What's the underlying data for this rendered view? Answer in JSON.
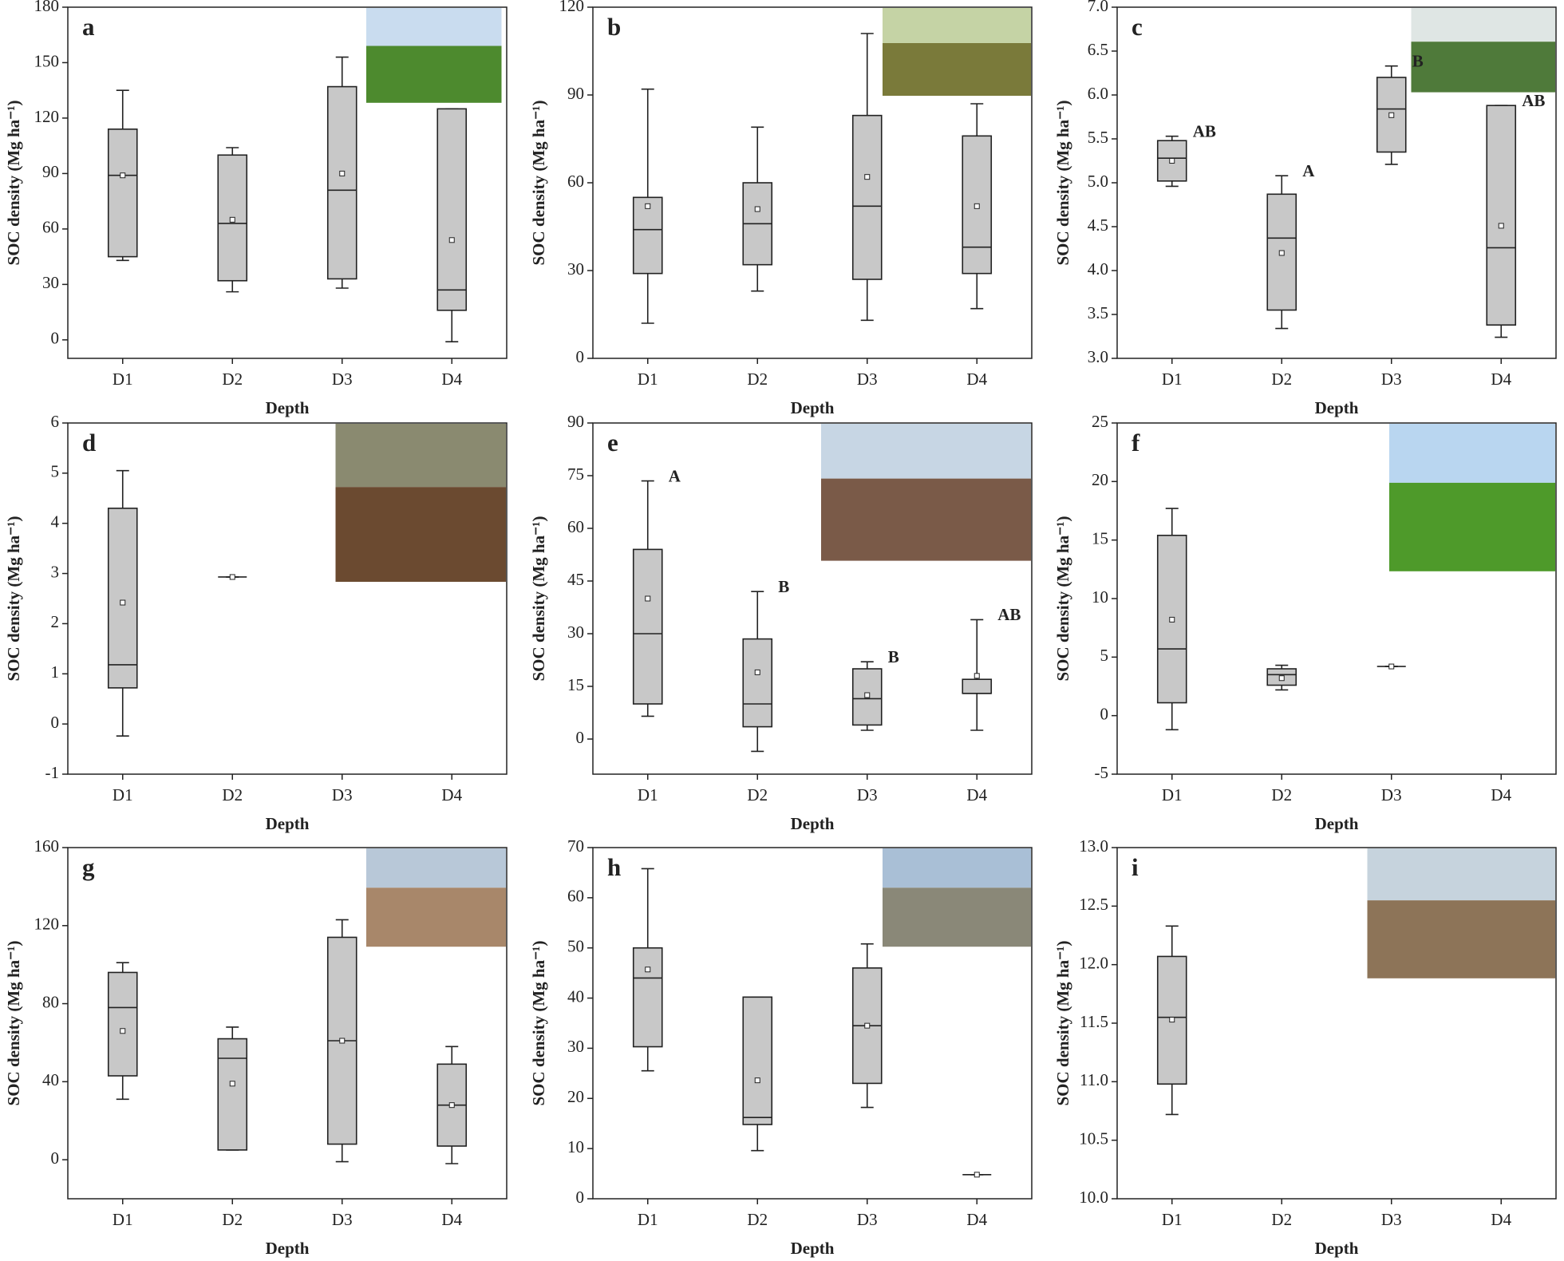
{
  "chart_data": [
    {
      "type": "box",
      "label": "a",
      "xlabel": "Depth",
      "ylabel": "SOC density (Mg ha⁻¹)",
      "categories": [
        "D1",
        "D2",
        "D3",
        "D4"
      ],
      "ylim": [
        -10,
        180
      ],
      "yticks": [
        0,
        30,
        60,
        90,
        120,
        150,
        180
      ],
      "boxes": [
        {
          "min": 43,
          "q1": 45,
          "median": 89,
          "q3": 114,
          "max": 135,
          "mean": 89
        },
        {
          "min": 26,
          "q1": 32,
          "median": 63,
          "q3": 100,
          "max": 104,
          "mean": 65
        },
        {
          "min": 28,
          "q1": 33,
          "median": 81,
          "q3": 137,
          "max": 153,
          "mean": 90
        },
        {
          "min": -1,
          "q1": 16,
          "median": 27,
          "q3": 125,
          "max": 125,
          "mean": 54
        }
      ]
    },
    {
      "type": "box",
      "label": "b",
      "xlabel": "Depth",
      "ylabel": "SOC density (Mg ha⁻¹)",
      "categories": [
        "D1",
        "D2",
        "D3",
        "D4"
      ],
      "ylim": [
        0,
        120
      ],
      "yticks": [
        0,
        30,
        60,
        90,
        120
      ],
      "boxes": [
        {
          "min": 12,
          "q1": 29,
          "median": 44,
          "q3": 55,
          "max": 92,
          "mean": 52
        },
        {
          "min": 23,
          "q1": 32,
          "median": 46,
          "q3": 60,
          "max": 79,
          "mean": 51
        },
        {
          "min": 13,
          "q1": 27,
          "median": 52,
          "q3": 83,
          "max": 111,
          "mean": 62
        },
        {
          "min": 17,
          "q1": 29,
          "median": 38,
          "q3": 76,
          "max": 87,
          "mean": 52
        }
      ]
    },
    {
      "type": "box",
      "label": "c",
      "xlabel": "Depth",
      "ylabel": "SOC density (Mg ha⁻¹)",
      "categories": [
        "D1",
        "D2",
        "D3",
        "D4"
      ],
      "ylim": [
        3,
        7
      ],
      "yticks": [
        {
          "value": 3,
          "label": "3.0"
        },
        3.5,
        {
          "value": 4,
          "label": "4.0"
        },
        4.5,
        {
          "value": 5,
          "label": "5.0"
        },
        5.5,
        {
          "value": 6,
          "label": "6.0"
        },
        6.5,
        {
          "value": 7,
          "label": "7.0"
        }
      ],
      "letters": [
        "AB",
        "A",
        "B",
        "AB"
      ],
      "boxes": [
        {
          "min": 4.96,
          "q1": 5.02,
          "median": 5.28,
          "q3": 5.48,
          "max": 5.53,
          "mean": 5.25
        },
        {
          "min": 3.34,
          "q1": 3.55,
          "median": 4.37,
          "q3": 4.87,
          "max": 5.08,
          "mean": 4.2
        },
        {
          "min": 5.21,
          "q1": 5.35,
          "median": 5.84,
          "q3": 6.2,
          "max": 6.33,
          "mean": 5.77
        },
        {
          "min": 3.24,
          "q1": 3.38,
          "median": 4.26,
          "q3": 5.88,
          "max": 5.88,
          "mean": 4.51
        }
      ]
    },
    {
      "type": "box",
      "label": "d",
      "xlabel": "Depth",
      "ylabel": "SOC density (Mg ha⁻¹)",
      "categories": [
        "D1",
        "D2",
        "D3",
        "D4"
      ],
      "ylim": [
        -1,
        6
      ],
      "yticks": [
        -1,
        0,
        1,
        2,
        3,
        4,
        5,
        6
      ],
      "boxes": [
        {
          "min": -0.24,
          "q1": 0.72,
          "median": 1.18,
          "q3": 4.3,
          "max": 5.05,
          "mean": 2.42
        },
        {
          "min": 2.93,
          "q1": 2.93,
          "median": 2.93,
          "q3": 2.93,
          "max": 2.93,
          "mean": 2.93
        },
        null,
        null
      ]
    },
    {
      "type": "box",
      "label": "e",
      "xlabel": "Depth",
      "ylabel": "SOC density (Mg ha⁻¹)",
      "categories": [
        "D1",
        "D2",
        "D3",
        "D4"
      ],
      "ylim": [
        -10,
        90
      ],
      "yticks": [
        0,
        15,
        30,
        45,
        60,
        75,
        90
      ],
      "letters": [
        "A",
        "B",
        "B",
        "AB"
      ],
      "boxes": [
        {
          "min": 6.5,
          "q1": 10,
          "median": 30,
          "q3": 54,
          "max": 73.5,
          "mean": 40
        },
        {
          "min": -3.5,
          "q1": 3.5,
          "median": 10,
          "q3": 28.5,
          "max": 42,
          "mean": 19
        },
        {
          "min": 2.5,
          "q1": 4,
          "median": 11.5,
          "q3": 20,
          "max": 22,
          "mean": 12.5
        },
        {
          "min": 2.5,
          "q1": 13,
          "median": 13,
          "q3": 17,
          "max": 34,
          "mean": 18
        }
      ]
    },
    {
      "type": "box",
      "label": "f",
      "xlabel": "Depth",
      "ylabel": "SOC density (Mg ha⁻¹)",
      "categories": [
        "D1",
        "D2",
        "D3",
        "D4"
      ],
      "ylim": [
        -5,
        25
      ],
      "yticks": [
        -5,
        0,
        5,
        10,
        15,
        20,
        25
      ],
      "boxes": [
        {
          "min": -1.2,
          "q1": 1.1,
          "median": 5.7,
          "q3": 15.4,
          "max": 17.7,
          "mean": 8.2
        },
        {
          "min": 2.2,
          "q1": 2.6,
          "median": 3.5,
          "q3": 4,
          "max": 4.3,
          "mean": 3.2
        },
        {
          "min": 4.2,
          "q1": 4.2,
          "median": 4.2,
          "q3": 4.2,
          "max": 4.2,
          "mean": 4.2
        },
        null
      ]
    },
    {
      "type": "box",
      "label": "g",
      "xlabel": "Depth",
      "ylabel": "SOC density (Mg ha⁻¹)",
      "categories": [
        "D1",
        "D2",
        "D3",
        "D4"
      ],
      "ylim": [
        -20,
        160
      ],
      "yticks": [
        0,
        40,
        80,
        120,
        160
      ],
      "boxes": [
        {
          "min": 31,
          "q1": 43,
          "median": 78,
          "q3": 96,
          "max": 101,
          "mean": 66
        },
        {
          "min": 5,
          "q1": 5,
          "median": 52,
          "q3": 62,
          "max": 68,
          "mean": 39
        },
        {
          "min": -1,
          "q1": 8,
          "median": 61,
          "q3": 114,
          "max": 123,
          "mean": 61
        },
        {
          "min": -2,
          "q1": 7,
          "median": 28,
          "q3": 49,
          "max": 58,
          "mean": 28
        }
      ]
    },
    {
      "type": "box",
      "label": "h",
      "xlabel": "Depth",
      "ylabel": "SOC density (Mg ha⁻¹)",
      "categories": [
        "D1",
        "D2",
        "D3",
        "D4"
      ],
      "ylim": [
        0,
        70
      ],
      "yticks": [
        0,
        10,
        20,
        30,
        40,
        50,
        60,
        70
      ],
      "boxes": [
        {
          "min": 25.5,
          "q1": 30.3,
          "median": 44,
          "q3": 50,
          "max": 65.8,
          "mean": 45.7
        },
        {
          "min": 9.6,
          "q1": 14.8,
          "median": 16.2,
          "q3": 40.2,
          "max": 40.2,
          "mean": 23.6
        },
        {
          "min": 18.2,
          "q1": 23,
          "median": 34.5,
          "q3": 46,
          "max": 50.8,
          "mean": 34.5
        },
        {
          "min": 4.8,
          "q1": 4.8,
          "median": 4.8,
          "q3": 4.8,
          "max": 4.8,
          "mean": 4.8
        }
      ]
    },
    {
      "type": "box",
      "label": "i",
      "xlabel": "Depth",
      "ylabel": "SOC density (Mg ha⁻¹)",
      "categories": [
        "D1",
        "D2",
        "D3",
        "D4"
      ],
      "ylim": [
        10,
        13
      ],
      "yticks": [
        {
          "value": 10,
          "label": "10.0"
        },
        10.5,
        {
          "value": 11,
          "label": "11.0"
        },
        11.5,
        {
          "value": 12,
          "label": "12.0"
        },
        12.5,
        {
          "value": 13,
          "label": "13.0"
        }
      ],
      "boxes": [
        {
          "min": 10.72,
          "q1": 10.98,
          "median": 11.55,
          "q3": 12.07,
          "max": 12.33,
          "mean": 11.53
        },
        null,
        null,
        null
      ]
    }
  ]
}
